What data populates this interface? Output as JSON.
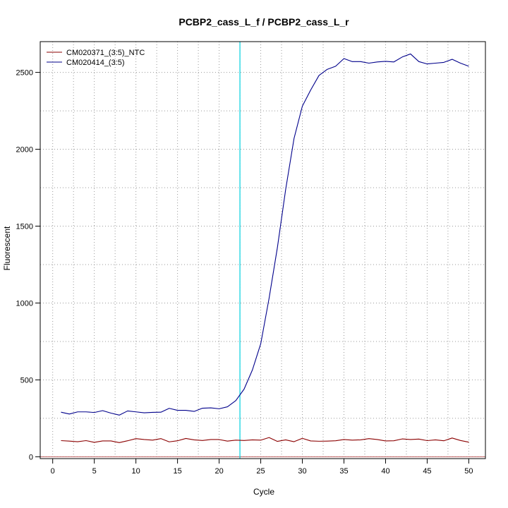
{
  "chart_data": {
    "type": "line",
    "title": "PCBP2_cass_L_f / PCBP2_cass_L_r",
    "xlabel": "Cycle",
    "ylabel": "Fluorescent",
    "xlim": [
      -1.5,
      52.0
    ],
    "ylim": [
      -12,
      2700
    ],
    "x_ticks": [
      0,
      5,
      10,
      15,
      20,
      25,
      30,
      35,
      40,
      45,
      50
    ],
    "y_ticks": [
      0,
      500,
      1000,
      1500,
      2000,
      2500
    ],
    "x_grid": [
      0,
      2.5,
      5,
      7.5,
      10,
      12.5,
      15,
      17.5,
      20,
      22.5,
      25,
      27.5,
      30,
      32.5,
      35,
      37.5,
      40,
      42.5,
      45,
      47.5,
      50
    ],
    "y_grid": [
      0,
      250,
      500,
      750,
      1000,
      1250,
      1500,
      1750,
      2000,
      2250,
      2500
    ],
    "grid": true,
    "legend_position": "top-left",
    "threshold": {
      "x": 22.5,
      "color": "#00d0e0"
    },
    "baseline": {
      "y": 0,
      "color": "#c06060"
    },
    "x": [
      1,
      2,
      3,
      4,
      5,
      6,
      7,
      8,
      9,
      10,
      11,
      12,
      13,
      14,
      15,
      16,
      17,
      18,
      19,
      20,
      21,
      22,
      23,
      24,
      25,
      26,
      27,
      28,
      29,
      30,
      31,
      32,
      33,
      34,
      35,
      36,
      37,
      38,
      39,
      40,
      41,
      42,
      43,
      44,
      45,
      46,
      47,
      48,
      49,
      50
    ],
    "series": [
      {
        "name": "CM020371_(3:5)_NTC",
        "color": "#8b0000",
        "values": [
          105,
          102,
          98,
          105,
          94,
          103,
          103,
          92,
          104,
          118,
          112,
          108,
          118,
          97,
          104,
          119,
          110,
          106,
          112,
          112,
          102,
          108,
          106,
          110,
          108,
          125,
          100,
          110,
          98,
          120,
          103,
          101,
          102,
          104,
          112,
          108,
          110,
          118,
          112,
          103,
          104,
          116,
          112,
          115,
          105,
          110,
          104,
          122,
          106,
          95
        ]
      },
      {
        "name": "CM020414_(3:5)",
        "color": "#00008b",
        "values": [
          290,
          278,
          292,
          292,
          288,
          300,
          284,
          271,
          298,
          292,
          286,
          289,
          290,
          315,
          302,
          302,
          295,
          316,
          318,
          312,
          325,
          365,
          440,
          565,
          735,
          1030,
          1360,
          1740,
          2070,
          2280,
          2385,
          2480,
          2520,
          2540,
          2590,
          2570,
          2570,
          2560,
          2568,
          2572,
          2568,
          2600,
          2620,
          2570,
          2555,
          2560,
          2565,
          2585,
          2560,
          2540
        ]
      }
    ]
  }
}
